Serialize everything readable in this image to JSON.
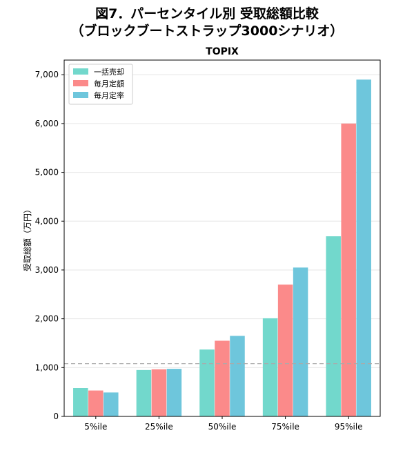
{
  "figure": {
    "title_line1": "図7．パーセンタイル別 受取総額比較",
    "title_line2": "（ブロックブートストラップ3000シナリオ）"
  },
  "chart_data": {
    "type": "bar",
    "title": "TOPIX",
    "xlabel": "",
    "ylabel": "受取総額（万円）",
    "categories": [
      "5%ile",
      "25%ile",
      "50%ile",
      "75%ile",
      "95%ile"
    ],
    "series": [
      {
        "name": "一括売却",
        "color": "#72d8cc",
        "values": [
          580,
          950,
          1370,
          2010,
          3690
        ]
      },
      {
        "name": "毎月定額",
        "color": "#fb8a8a",
        "values": [
          530,
          965,
          1550,
          2700,
          6000
        ]
      },
      {
        "name": "毎月定率",
        "color": "#6ec6dc",
        "values": [
          490,
          975,
          1650,
          3050,
          6900
        ]
      }
    ],
    "reference_line": {
      "value": 1080,
      "style": "dashed",
      "color": "#aaaaaa"
    },
    "ylim": [
      0,
      7300
    ],
    "yticks": [
      0,
      1000,
      2000,
      3000,
      4000,
      5000,
      6000,
      7000
    ],
    "ytick_labels": [
      "0",
      "1,000",
      "2,000",
      "3,000",
      "4,000",
      "5,000",
      "6,000",
      "7,000"
    ],
    "grid": "y",
    "legend_position": "top-left"
  }
}
